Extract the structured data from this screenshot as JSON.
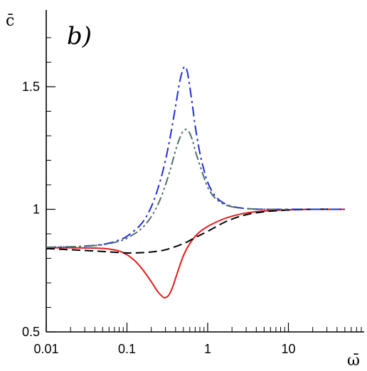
{
  "chart_data": {
    "type": "line",
    "panel_label": "b)",
    "xlabel": "ω̄",
    "ylabel": "c̄",
    "x_scale": "log",
    "xlim": [
      0.01,
      100
    ],
    "ylim": [
      0.5,
      1.5
    ],
    "x_ticks": [
      {
        "value": 0.01,
        "label": "0.01"
      },
      {
        "value": 0.1,
        "label": "0.1"
      },
      {
        "value": 1,
        "label": "1"
      },
      {
        "value": 10,
        "label": "10"
      }
    ],
    "y_ticks": [
      {
        "value": 0.5,
        "label": "0.5"
      },
      {
        "value": 1,
        "label": "1"
      },
      {
        "value": 1.5,
        "label": "1.5"
      }
    ],
    "grid": false,
    "legend": "none",
    "series": [
      {
        "color": "#e41a1c",
        "style": "solid",
        "x": [
          0.01,
          0.02,
          0.04,
          0.06,
          0.08,
          0.1,
          0.13,
          0.16,
          0.2,
          0.24,
          0.28,
          0.3,
          0.33,
          0.37,
          0.42,
          0.5,
          0.6,
          0.75,
          1,
          1.5,
          2,
          3,
          5,
          10,
          20,
          50,
          100
        ],
        "values": [
          0.843,
          0.843,
          0.842,
          0.838,
          0.83,
          0.815,
          0.785,
          0.75,
          0.705,
          0.665,
          0.642,
          0.64,
          0.65,
          0.685,
          0.74,
          0.81,
          0.86,
          0.9,
          0.93,
          0.958,
          0.972,
          0.985,
          0.993,
          0.998,
          1.0,
          1.0,
          1.0
        ]
      },
      {
        "color": "#000000",
        "style": "dashed",
        "x": [
          0.01,
          0.02,
          0.04,
          0.07,
          0.1,
          0.15,
          0.2,
          0.3,
          0.5,
          0.7,
          1,
          1.5,
          2,
          3,
          5,
          10,
          20,
          50,
          100
        ],
        "values": [
          0.84,
          0.835,
          0.83,
          0.825,
          0.822,
          0.823,
          0.826,
          0.835,
          0.86,
          0.885,
          0.91,
          0.942,
          0.96,
          0.978,
          0.99,
          0.997,
          1.0,
          1.0,
          1.0
        ]
      },
      {
        "color": "#1f2fd6",
        "style": "dashdot",
        "x": [
          0.01,
          0.02,
          0.04,
          0.06,
          0.08,
          0.1,
          0.15,
          0.2,
          0.25,
          0.3,
          0.35,
          0.4,
          0.45,
          0.5,
          0.53,
          0.56,
          0.6,
          0.65,
          0.7,
          0.8,
          0.9,
          1,
          1.2,
          1.5,
          2,
          3,
          5,
          10,
          20,
          50,
          100
        ],
        "values": [
          0.845,
          0.847,
          0.853,
          0.862,
          0.875,
          0.89,
          0.94,
          1.01,
          1.1,
          1.2,
          1.31,
          1.42,
          1.52,
          1.575,
          1.58,
          1.56,
          1.5,
          1.42,
          1.34,
          1.23,
          1.16,
          1.11,
          1.06,
          1.03,
          1.012,
          1.003,
          1.0,
          1.0,
          1.0,
          1.0,
          1.0
        ]
      },
      {
        "color": "#4f6f6a",
        "style": "dashdotdot",
        "x": [
          0.01,
          0.02,
          0.04,
          0.06,
          0.08,
          0.1,
          0.15,
          0.2,
          0.25,
          0.3,
          0.35,
          0.4,
          0.45,
          0.5,
          0.55,
          0.6,
          0.65,
          0.7,
          0.8,
          0.9,
          1,
          1.2,
          1.5,
          2,
          3,
          5,
          10,
          100
        ],
        "values": [
          0.845,
          0.847,
          0.852,
          0.86,
          0.87,
          0.882,
          0.92,
          0.97,
          1.03,
          1.1,
          1.17,
          1.24,
          1.29,
          1.32,
          1.325,
          1.31,
          1.28,
          1.24,
          1.18,
          1.13,
          1.09,
          1.05,
          1.025,
          1.01,
          1.003,
          1.0,
          1.0,
          1.0
        ]
      }
    ]
  }
}
